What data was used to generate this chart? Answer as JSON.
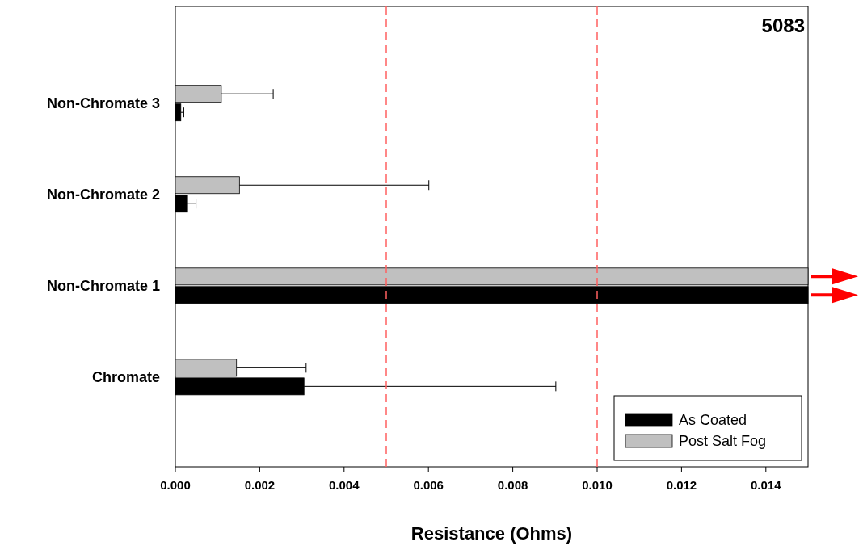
{
  "chart_data": {
    "type": "bar",
    "orientation": "horizontal",
    "xlabel": "Resistance (Ohms)",
    "categories": [
      "Non-Chromate 3",
      "Non-Chromate 2",
      "Non-Chromate 1",
      "Chromate"
    ],
    "series": [
      {
        "name": "Post Salt Fog",
        "color": "#c0c0c0",
        "values": [
          0.00109,
          0.00152,
          0.015,
          0.00145
        ],
        "errors": [
          [
            0.00109,
            0.00232
          ],
          [
            0.00152,
            0.00601
          ],
          null,
          [
            0.00145,
            0.0031
          ]
        ]
      },
      {
        "name": "As Coated",
        "color": "#000000",
        "values": [
          0.00013,
          0.00029,
          0.015,
          0.00305
        ],
        "errors": [
          [
            0.00013,
            0.0002
          ],
          [
            0.00029,
            0.00049
          ],
          null,
          [
            0.00305,
            0.00902
          ]
        ]
      }
    ],
    "xlim": [
      0,
      0.015
    ],
    "xticks": [
      {
        "value": 0,
        "label": "0.000"
      },
      {
        "value": 0.002,
        "label": "0.002"
      },
      {
        "value": 0.004,
        "label": "0.004"
      },
      {
        "value": 0.006,
        "label": "0.006"
      },
      {
        "value": 0.008,
        "label": "0.008"
      },
      {
        "value": 0.01,
        "label": "0.010"
      },
      {
        "value": 0.012,
        "label": "0.012"
      },
      {
        "value": 0.014,
        "label": "0.014"
      }
    ],
    "ref_lines": [
      {
        "axis": "x",
        "value": 0.005,
        "color": "#ff6060",
        "line_style": "dashed"
      },
      {
        "axis": "x",
        "value": 0.01,
        "color": "#ff6060",
        "line_style": "dashed"
      }
    ],
    "annotations": [
      "5083"
    ],
    "legend": "bottom right",
    "grid": false
  }
}
